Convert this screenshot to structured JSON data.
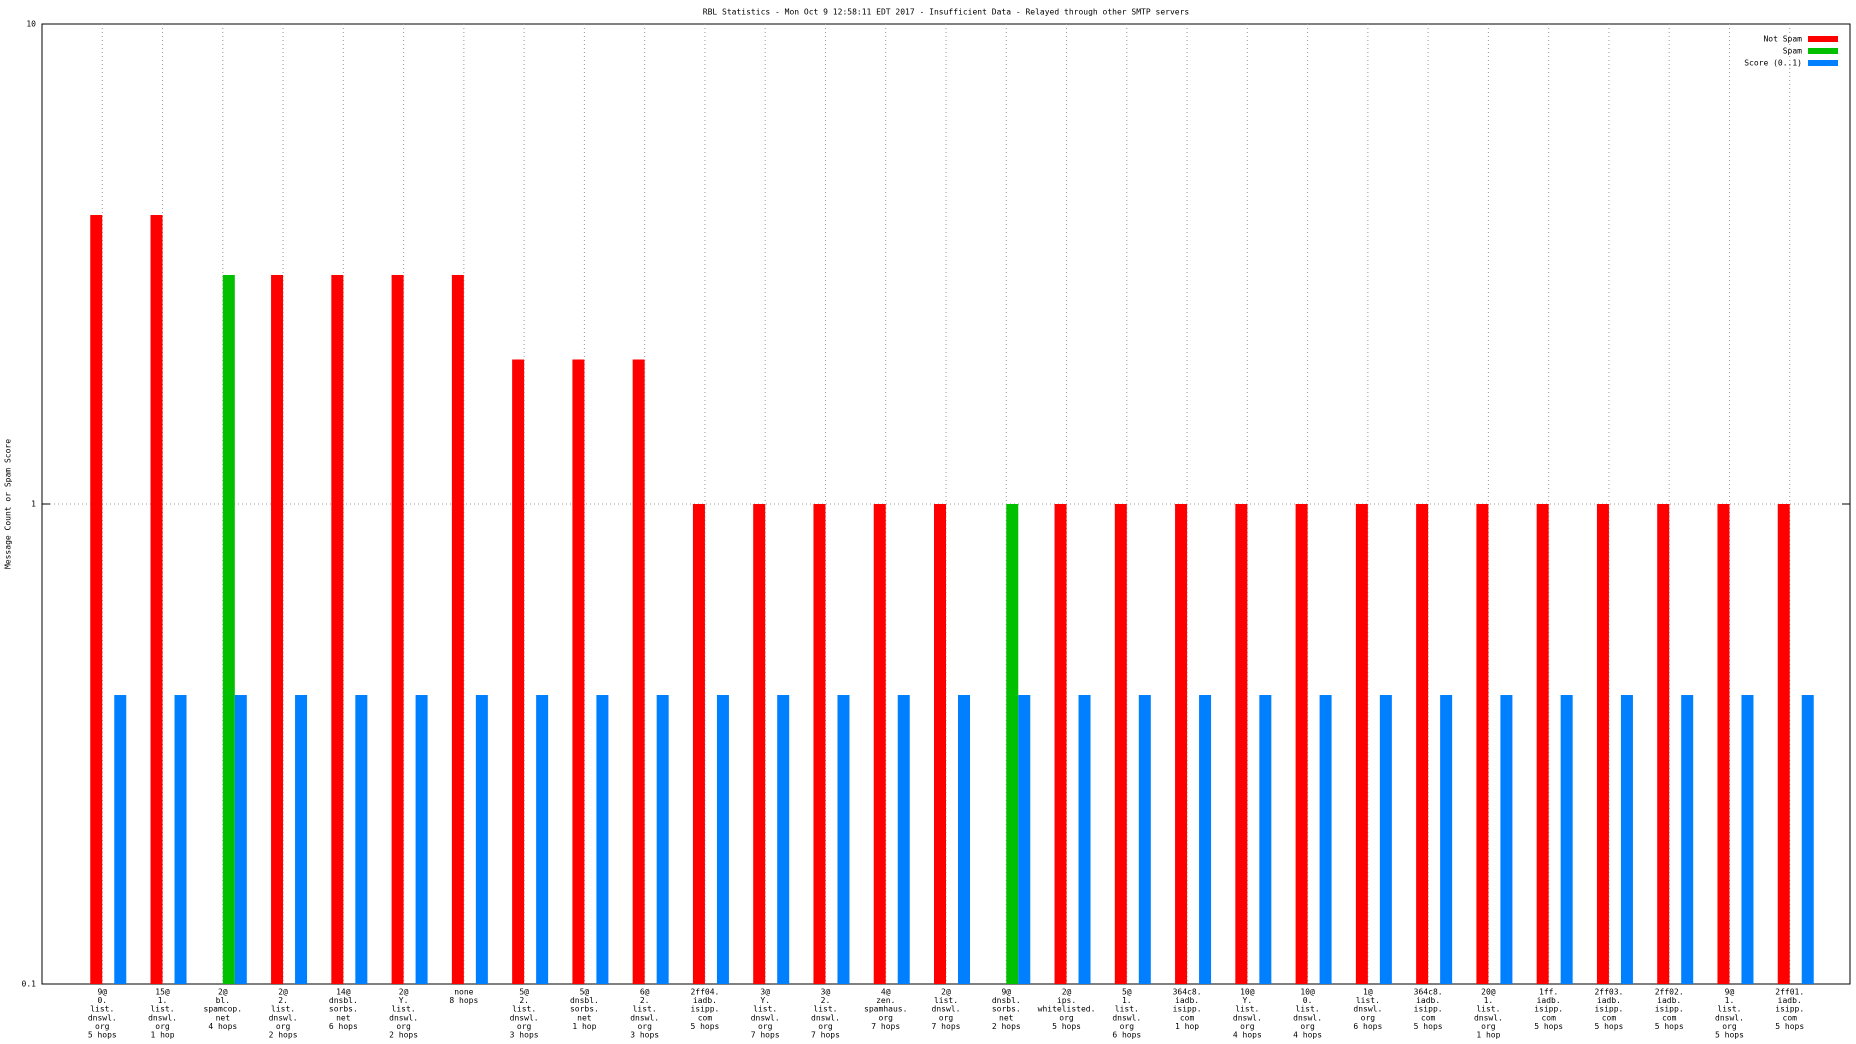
{
  "chart_data": {
    "type": "bar",
    "title": "RBL Statistics - Mon Oct  9 12:58:11 EDT 2017 - Insufficient Data - Relayed through other SMTP servers",
    "y_label": "Message Count or Spam Score",
    "log_scale": true,
    "ylim": [
      0.1,
      10
    ],
    "yticks": [
      0.1,
      1,
      10
    ],
    "grid": true,
    "legend": "top-right",
    "categories": [
      [
        "9@",
        "0.",
        "list.",
        "dnswl.",
        "org",
        "5 hops"
      ],
      [
        "15@",
        "1.",
        "list.",
        "dnswl.",
        "org",
        "1 hop"
      ],
      [
        "2@",
        "bl.",
        "spamcop.",
        "net",
        "4 hops"
      ],
      [
        "2@",
        "2.",
        "list.",
        "dnswl.",
        "org",
        "2 hops"
      ],
      [
        "14@",
        "dnsbl.",
        "sorbs.",
        "net",
        "6 hops"
      ],
      [
        "2@",
        "Y.",
        "list.",
        "dnswl.",
        "org",
        "2 hops"
      ],
      [
        "none",
        "8 hops"
      ],
      [
        "5@",
        "2.",
        "list.",
        "dnswl.",
        "org",
        "3 hops"
      ],
      [
        "5@",
        "dnsbl.",
        "sorbs.",
        "net",
        "1 hop"
      ],
      [
        "6@",
        "2.",
        "list.",
        "dnswl.",
        "org",
        "3 hops"
      ],
      [
        "2ff04.",
        "iadb.",
        "isipp.",
        "com",
        "5 hops"
      ],
      [
        "3@",
        "Y.",
        "list.",
        "dnswl.",
        "org",
        "7 hops"
      ],
      [
        "3@",
        "2.",
        "list.",
        "dnswl.",
        "org",
        "7 hops"
      ],
      [
        "4@",
        "zen.",
        "spamhaus.",
        "org",
        "7 hops"
      ],
      [
        "2@",
        "list.",
        "dnswl.",
        "org",
        "7 hops"
      ],
      [
        "9@",
        "dnsbl.",
        "sorbs.",
        "net",
        "2 hops"
      ],
      [
        "2@",
        "ips.",
        "whitelisted.",
        "org",
        "5 hops"
      ],
      [
        "5@",
        "1.",
        "list.",
        "dnswl.",
        "org",
        "6 hops"
      ],
      [
        "364c8.",
        "iadb.",
        "isipp.",
        "com",
        "1 hop"
      ],
      [
        "10@",
        "Y.",
        "list.",
        "dnswl.",
        "org",
        "4 hops"
      ],
      [
        "10@",
        "0.",
        "list.",
        "dnswl.",
        "org",
        "4 hops"
      ],
      [
        "1@",
        "list.",
        "dnswl.",
        "org",
        "6 hops"
      ],
      [
        "364c8.",
        "iadb.",
        "isipp.",
        "com",
        "5 hops"
      ],
      [
        "20@",
        "1.",
        "list.",
        "dnswl.",
        "org",
        "1 hop"
      ],
      [
        "1ff.",
        "iadb.",
        "isipp.",
        "com",
        "5 hops"
      ],
      [
        "2ff03.",
        "iadb.",
        "isipp.",
        "com",
        "5 hops"
      ],
      [
        "2ff02.",
        "iadb.",
        "isipp.",
        "com",
        "5 hops"
      ],
      [
        "9@",
        "1.",
        "list.",
        "dnswl.",
        "org",
        "5 hops"
      ],
      [
        "2ff01.",
        "iadb.",
        "isipp.",
        "com",
        "5 hops"
      ]
    ],
    "series": [
      {
        "name": "Not Spam",
        "color": "#ff0000",
        "values": [
          4,
          4,
          null,
          3,
          3,
          3,
          3,
          2,
          2,
          2,
          1,
          1,
          1,
          1,
          1,
          null,
          1,
          1,
          1,
          1,
          1,
          1,
          1,
          1,
          1,
          1,
          1,
          1,
          1
        ]
      },
      {
        "name": "Spam",
        "color": "#00c000",
        "values": [
          null,
          null,
          3,
          null,
          null,
          null,
          null,
          null,
          null,
          null,
          null,
          null,
          null,
          null,
          null,
          1,
          null,
          null,
          null,
          null,
          null,
          null,
          null,
          null,
          null,
          null,
          null,
          null,
          null
        ]
      },
      {
        "name": "Score (0..1)",
        "color": "#0080ff",
        "values": [
          0.4,
          0.4,
          0.4,
          0.4,
          0.4,
          0.4,
          0.4,
          0.4,
          0.4,
          0.4,
          0.4,
          0.4,
          0.4,
          0.4,
          0.4,
          0.4,
          0.4,
          0.4,
          0.4,
          0.4,
          0.4,
          0.4,
          0.4,
          0.4,
          0.4,
          0.4,
          0.4,
          0.4,
          0.4
        ]
      }
    ]
  }
}
